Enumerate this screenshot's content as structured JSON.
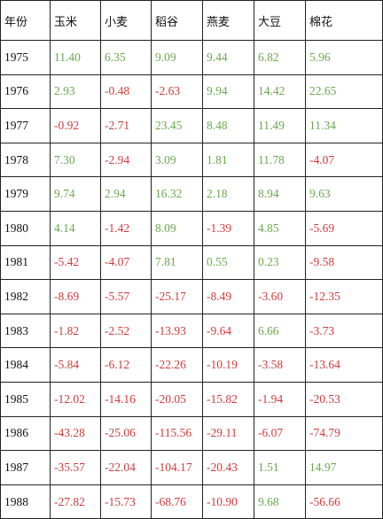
{
  "table": {
    "headers": [
      "年份",
      "玉米",
      "小麦",
      "稻谷",
      "燕麦",
      "大豆",
      "棉花"
    ],
    "colors": {
      "positive": "#6aa84f",
      "negative": "#cc3d3d"
    },
    "rows": [
      [
        "1975",
        "11.40",
        "6.35",
        "9.09",
        "9.44",
        "6.82",
        "5.96"
      ],
      [
        "1976",
        "2.93",
        "-0.48",
        "-2.63",
        "9.94",
        "14.42",
        "22.65"
      ],
      [
        "1977",
        "-0.92",
        "-2.71",
        "23.45",
        "8.48",
        "11.49",
        "11.34"
      ],
      [
        "1978",
        "7.30",
        "-2.94",
        "3.09",
        "1.81",
        "11.78",
        "-4.07"
      ],
      [
        "1979",
        "9.74",
        "2.94",
        "16.32",
        "2.18",
        "8.94",
        "9.63"
      ],
      [
        "1980",
        "4.14",
        "-1.42",
        "8.09",
        "-1.39",
        "4.85",
        "-5.69"
      ],
      [
        "1981",
        "-5.42",
        "-4.07",
        "7.81",
        "0.55",
        "0.23",
        "-9.58"
      ],
      [
        "1982",
        "-8.69",
        "-5.57",
        "-25.17",
        "-8.49",
        "-3.60",
        "-12.35"
      ],
      [
        "1983",
        "-1.82",
        "-2.52",
        "-13.93",
        "-9.64",
        "6.66",
        "-3.73"
      ],
      [
        "1984",
        "-5.84",
        "-6.12",
        "-22.26",
        "-10.19",
        "-3.58",
        "-13.64"
      ],
      [
        "1985",
        "-12.02",
        "-14.16",
        "-20.05",
        "-15.82",
        "-1.94",
        "-20.53"
      ],
      [
        "1986",
        "-43.28",
        "-25.06",
        "-115.56",
        "-29.11",
        "-6.07",
        "-74.79"
      ],
      [
        "1987",
        "-35.57",
        "-22.04",
        "-104.17",
        "-20.43",
        "1.51",
        "14.97"
      ],
      [
        "1988",
        "-27.82",
        "-15.73",
        "-68.76",
        "-10.90",
        "9.68",
        "-56.66"
      ]
    ]
  }
}
